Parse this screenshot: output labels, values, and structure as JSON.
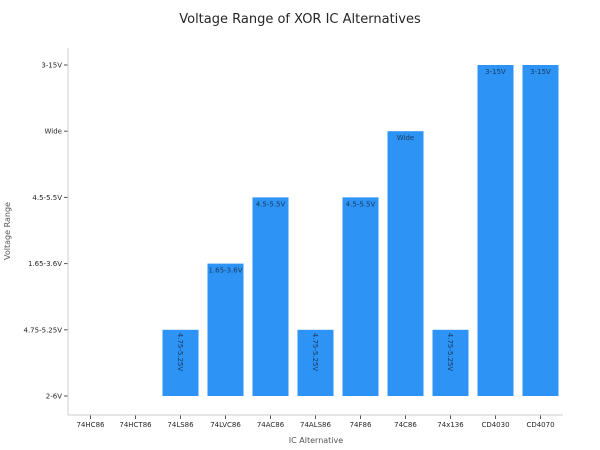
{
  "chart_data": {
    "type": "bar",
    "title": "Voltage Range of XOR IC Alternatives",
    "xlabel": "IC Alternative",
    "ylabel": "Voltage Range",
    "y_categories": [
      "2-6V",
      "4.75-5.25V",
      "1.65-3.6V",
      "4.5-5.5V",
      "Wide",
      "3-15V"
    ],
    "categories": [
      "74HC86",
      "74HCT86",
      "74LS86",
      "74LVC86",
      "74AC86",
      "74ALS86",
      "74F86",
      "74C86",
      "74x136",
      "CD4030",
      "CD4070"
    ],
    "values": [
      "2-6V",
      "2-6V",
      "4.75-5.25V",
      "1.65-3.6V",
      "4.5-5.5V",
      "4.75-5.25V",
      "4.5-5.5V",
      "Wide",
      "4.75-5.25V",
      "3-15V",
      "3-15V"
    ],
    "bar_labels": [
      "",
      "",
      "4.75-5.25V",
      "1.65-3.6V",
      "4.5-5.5V",
      "4.75-5.25V",
      "4.5-5.5V",
      "Wide",
      "4.75-5.25V",
      "3-15V",
      "3-15V"
    ],
    "bar_color": "#2d93f5",
    "grid": false,
    "legend": "none"
  }
}
